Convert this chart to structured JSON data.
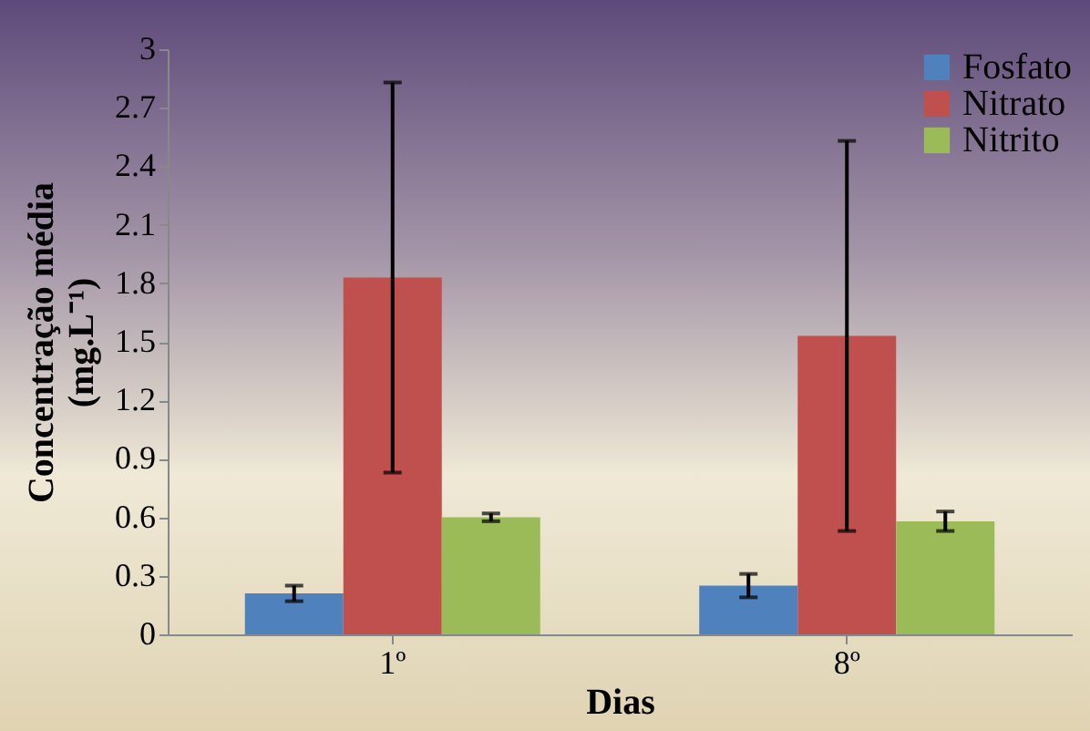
{
  "chart_data": {
    "type": "bar",
    "xlabel": "Dias",
    "ylabel": "Concentração média (mg.L⁻¹)",
    "categories": [
      "1º",
      "8º"
    ],
    "series": [
      {
        "name": "Fosfato",
        "color": "#4f81bd",
        "values": [
          0.21,
          0.25
        ],
        "errors": [
          0.04,
          0.06
        ]
      },
      {
        "name": "Nitrato",
        "color": "#c0504d",
        "values": [
          1.83,
          1.53
        ],
        "errors": [
          1.0,
          1.0
        ]
      },
      {
        "name": "Nitrito",
        "color": "#9bbb59",
        "values": [
          0.6,
          0.58
        ],
        "errors": [
          0.02,
          0.05
        ]
      }
    ],
    "ylim": [
      0,
      3
    ],
    "yticks": [
      0,
      0.3,
      0.6,
      0.9,
      1.2,
      1.5,
      1.8,
      2.1,
      2.4,
      2.7,
      3
    ],
    "grid": false,
    "legend": "top right"
  }
}
